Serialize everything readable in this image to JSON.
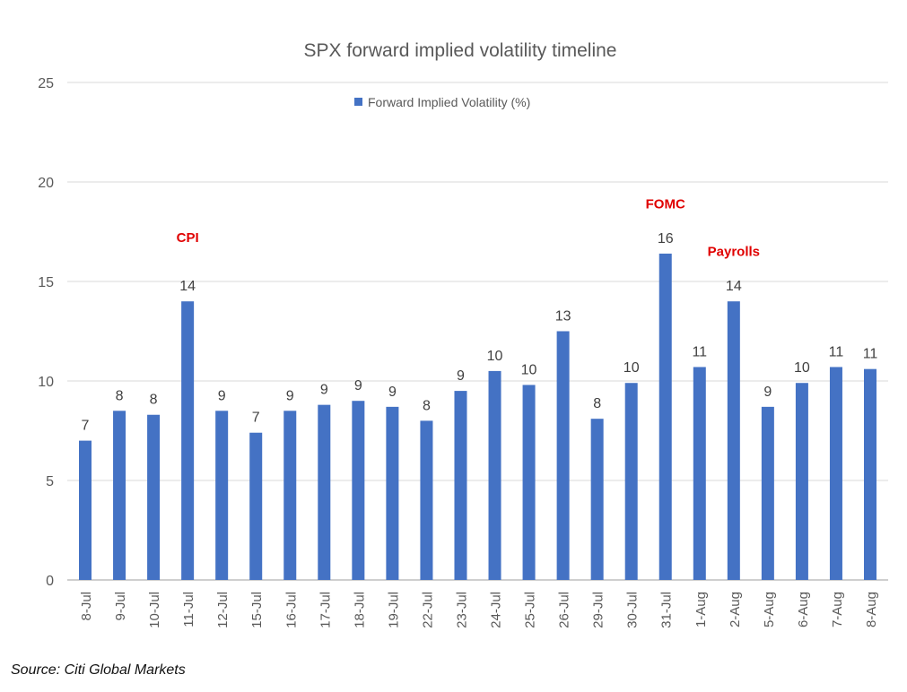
{
  "chart_data": {
    "type": "bar",
    "title": "SPX forward implied volatility timeline",
    "xlabel": "",
    "ylabel": "",
    "ylim": [
      0,
      25
    ],
    "yticks": [
      0,
      5,
      10,
      15,
      20,
      25
    ],
    "grid": true,
    "legend": {
      "position": "top-center",
      "entries": [
        "Forward Implied Volatility (%)"
      ]
    },
    "categories": [
      "8-Jul",
      "9-Jul",
      "10-Jul",
      "11-Jul",
      "12-Jul",
      "15-Jul",
      "16-Jul",
      "17-Jul",
      "18-Jul",
      "19-Jul",
      "22-Jul",
      "23-Jul",
      "24-Jul",
      "25-Jul",
      "26-Jul",
      "29-Jul",
      "30-Jul",
      "31-Jul",
      "1-Aug",
      "2-Aug",
      "5-Aug",
      "6-Aug",
      "7-Aug",
      "8-Aug"
    ],
    "series": [
      {
        "name": "Forward Implied Volatility (%)",
        "color": "#4472C4",
        "values": [
          7.0,
          8.5,
          8.3,
          14.0,
          8.5,
          7.4,
          8.5,
          8.8,
          9.0,
          8.7,
          8.0,
          9.5,
          10.5,
          9.8,
          12.5,
          8.1,
          9.9,
          16.4,
          10.7,
          14.0,
          8.7,
          9.9,
          10.7,
          10.6
        ],
        "data_labels": [
          "7",
          "8",
          "8",
          "14",
          "9",
          "7",
          "9",
          "9",
          "9",
          "9",
          "8",
          "9",
          "10",
          "10",
          "13",
          "8",
          "10",
          "16",
          "11",
          "14",
          "9",
          "10",
          "11",
          "11"
        ]
      }
    ],
    "annotations": [
      {
        "text": "CPI",
        "category": "11-Jul",
        "value": 17.2,
        "color": "#E00000"
      },
      {
        "text": "FOMC",
        "category": "31-Jul",
        "value": 18.9,
        "color": "#E00000"
      },
      {
        "text": "Payrolls",
        "category": "2-Aug",
        "value": 16.5,
        "color": "#E00000"
      }
    ]
  },
  "source": "Source: Citi Global Markets"
}
